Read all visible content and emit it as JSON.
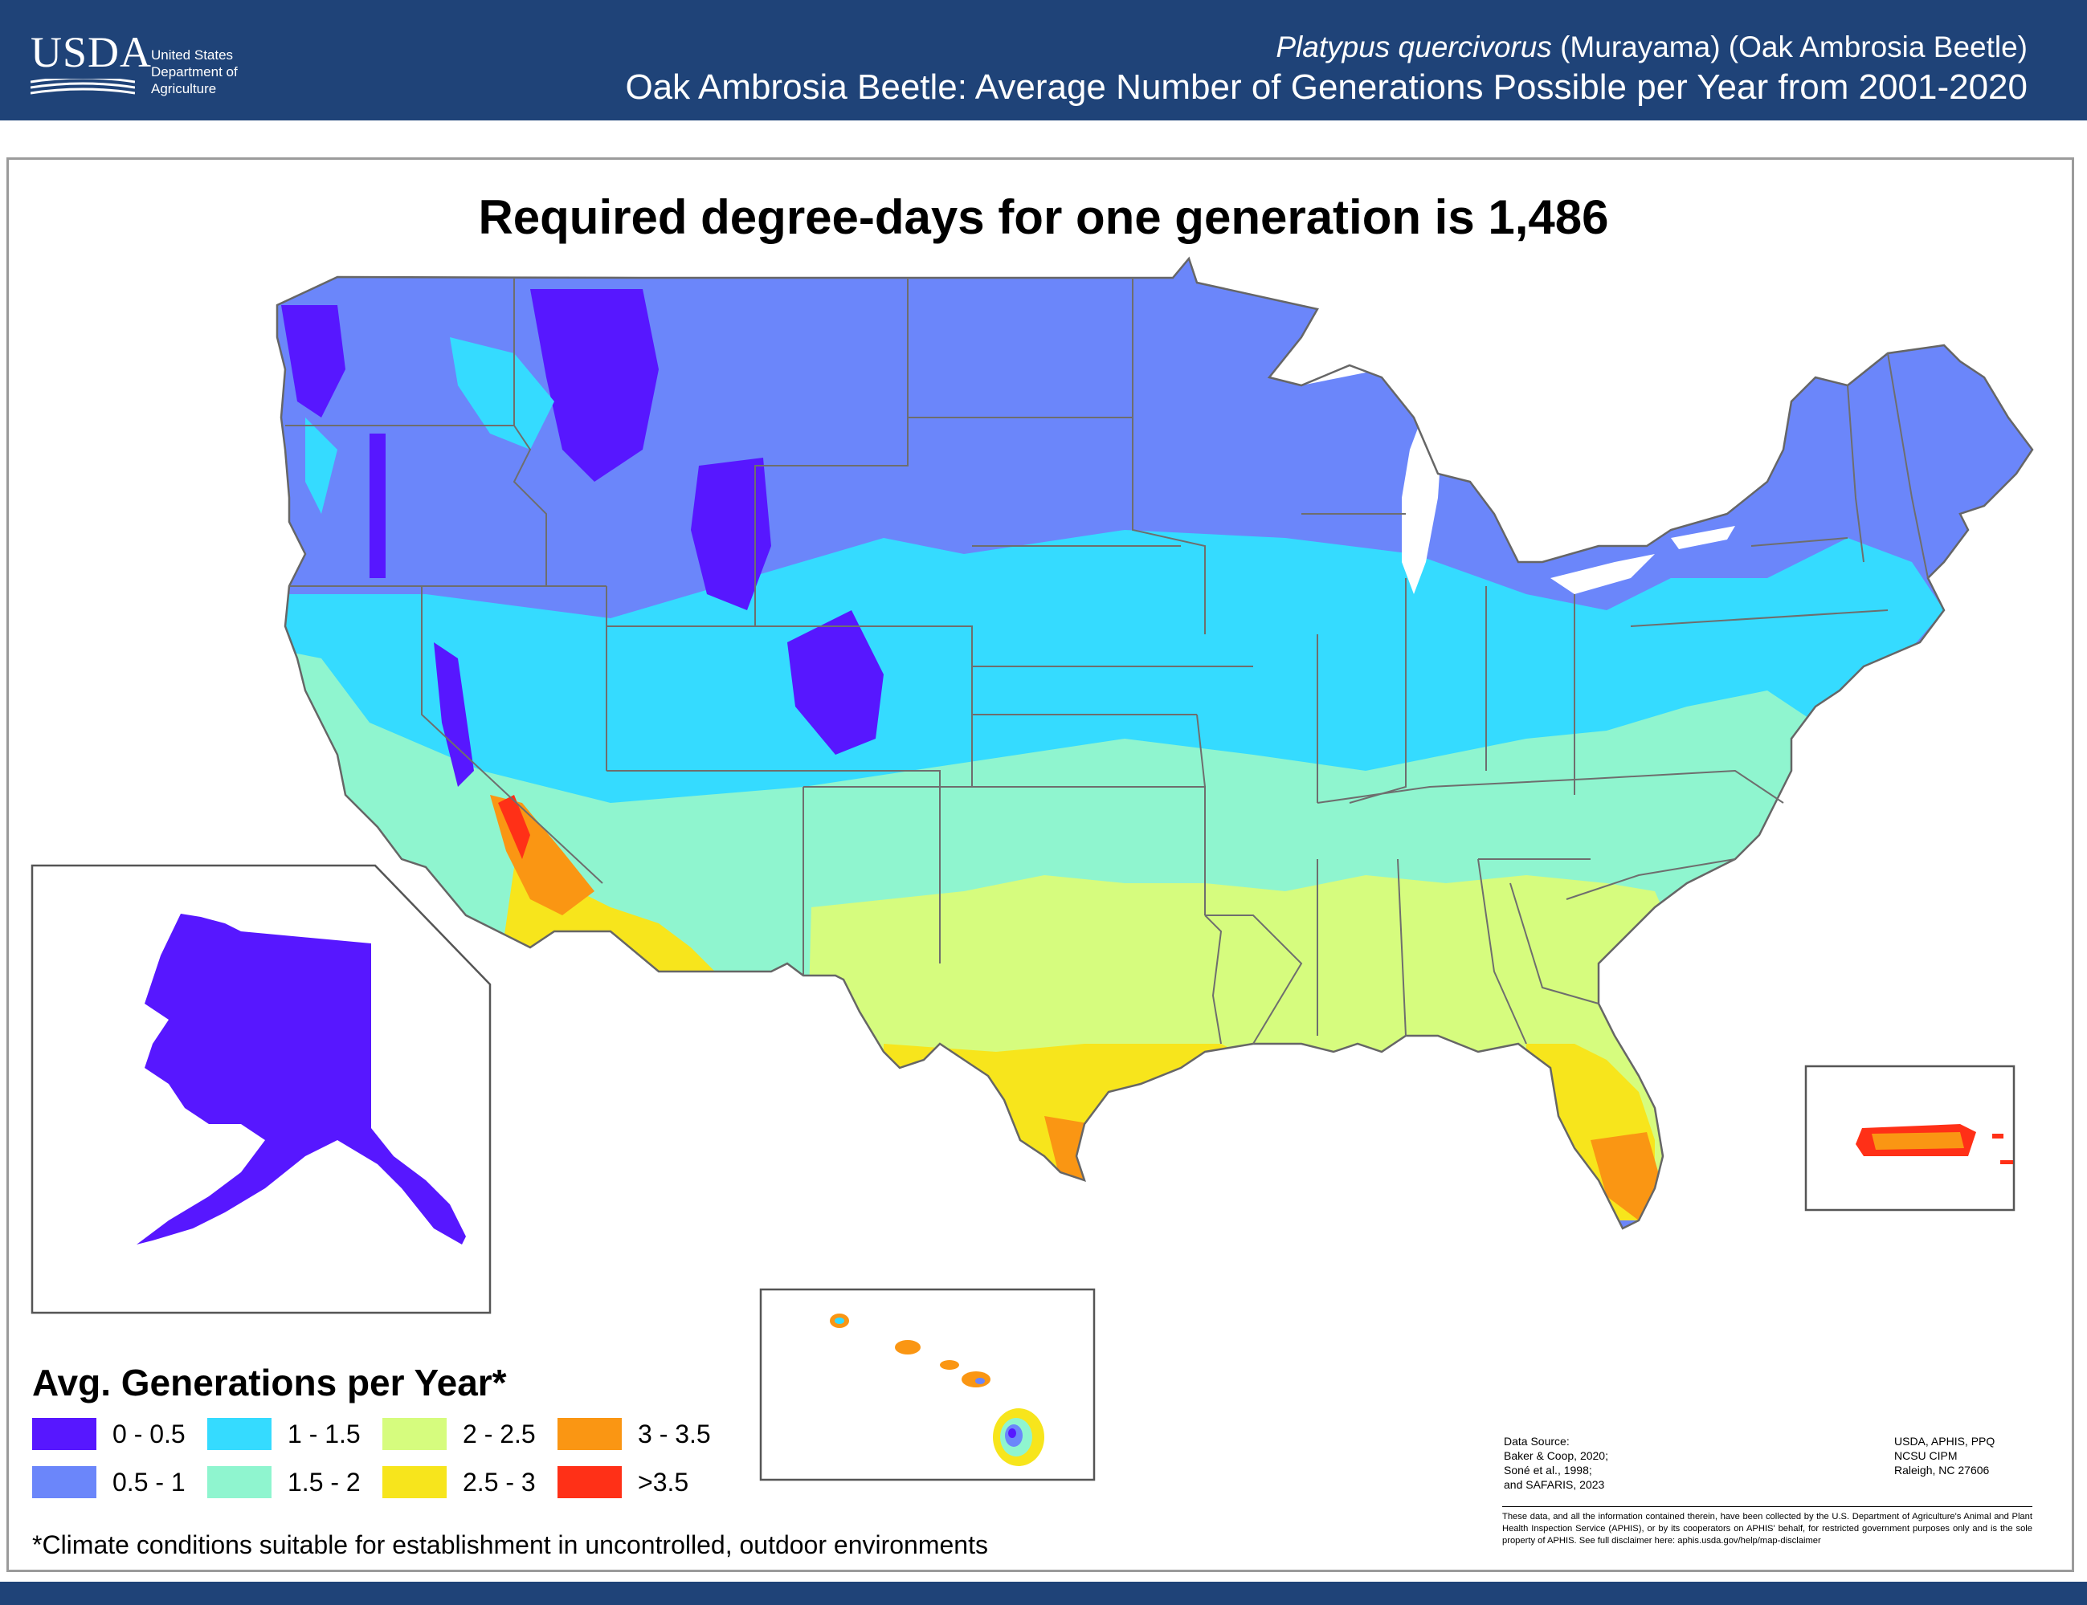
{
  "header": {
    "logo_word": "USDA",
    "logo_lines": [
      "United States",
      "Department of",
      "Agriculture"
    ],
    "species_italic": "Platypus quercivorus",
    "species_rest": " (Murayama) (Oak Ambrosia Beetle)",
    "title": "Oak Ambrosia Beetle: Average Number of Generations Possible per Year from 2001-2020"
  },
  "map": {
    "title": "Required degree-days for one generation is 1,486",
    "insets": [
      "Alaska",
      "Hawaii",
      "Puerto Rico"
    ]
  },
  "legend": {
    "title": "Avg. Generations per Year*",
    "items": [
      {
        "label": "0 - 0.5",
        "color": "#5717ff"
      },
      {
        "label": "0.5 - 1",
        "color": "#6b86fa"
      },
      {
        "label": "1 - 1.5",
        "color": "#35dbff"
      },
      {
        "label": "1.5 - 2",
        "color": "#8ff5cf"
      },
      {
        "label": "2 - 2.5",
        "color": "#d6fc7e"
      },
      {
        "label": "2.5 - 3",
        "color": "#f7e51c"
      },
      {
        "label": "3 - 3.5",
        "color": "#fa9613"
      },
      {
        "label": ">3.5",
        "color": "#ff3017"
      }
    ]
  },
  "footnote": "*Climate conditions suitable for establishment in uncontrolled, outdoor environments",
  "data_source": [
    "Data Source:",
    "Baker & Coop, 2020;",
    "Soné et al., 1998;",
    "and SAFARIS, 2023"
  ],
  "agency": [
    "USDA, APHIS, PPQ",
    "NCSU CIPM",
    "Raleigh, NC 27606"
  ],
  "disclaimer": "These data, and all the information contained therein, have been collected by the U.S. Department of Agriculture's Animal and Plant Health Inspection Service (APHIS), or by its cooperators on APHIS' behalf, for restricted government purposes only and is the sole property of APHIS. See full disclaimer here: aphis.usda.gov/help/map-disclaimer"
}
